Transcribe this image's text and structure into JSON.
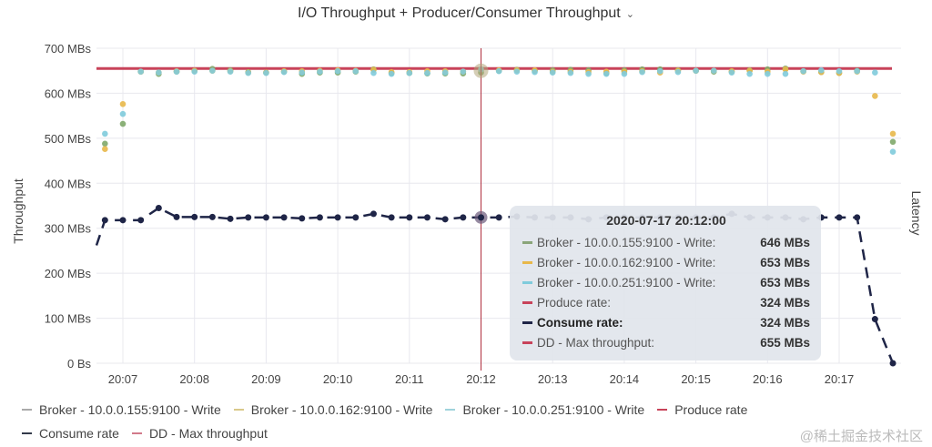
{
  "chart_data": {
    "type": "line",
    "title": "I/O Throughput + Producer/Consumer Throughput",
    "ylabel": "Throughput",
    "ylabel_right": "Latency",
    "ylim": [
      0,
      700
    ],
    "yticks": [
      "0 Bs",
      "100 MBs",
      "200 MBs",
      "300 MBs",
      "400 MBs",
      "500 MBs",
      "600 MBs",
      "700 MBs"
    ],
    "ytick_values": [
      0,
      100,
      200,
      300,
      400,
      500,
      600,
      700
    ],
    "xticks": [
      "20:07",
      "20:08",
      "20:09",
      "20:10",
      "20:11",
      "20:12",
      "20:13",
      "20:14",
      "20:15",
      "20:16",
      "20:17"
    ],
    "x_start": "20:06:45",
    "interval_seconds": 15,
    "grid": true,
    "legend_placement": "bottom",
    "series": [
      {
        "name": "Broker - 10.0.0.155:9100 - Write",
        "color": "#7fa86a",
        "style": "points",
        "values": [
          488,
          532,
          648,
          643,
          648,
          650,
          654,
          651,
          647,
          646,
          648,
          643,
          646,
          646,
          648,
          653,
          645,
          645,
          644,
          644,
          644,
          646,
          650,
          652,
          650,
          651,
          652,
          651,
          645,
          651,
          653,
          653,
          651,
          650,
          648,
          648,
          651,
          653,
          655,
          649,
          647,
          645,
          650,
          null,
          492
        ]
      },
      {
        "name": "Broker - 10.0.0.162:9100 - Write",
        "color": "#e8b84a",
        "style": "points",
        "values": [
          476,
          576,
          648,
          646,
          649,
          650,
          650,
          649,
          646,
          646,
          649,
          649,
          650,
          651,
          650,
          652,
          647,
          647,
          649,
          649,
          648,
          653,
          651,
          651,
          651,
          648,
          648,
          647,
          648,
          648,
          649,
          646,
          650,
          650,
          650,
          649,
          650,
          648,
          653,
          648,
          647,
          645,
          648,
          594,
          510
        ]
      },
      {
        "name": "Broker - 10.0.0.251:9100 - Write",
        "color": "#7fcbdc",
        "style": "points",
        "values": [
          510,
          554,
          648,
          646,
          648,
          648,
          650,
          648,
          645,
          645,
          647,
          646,
          648,
          649,
          649,
          645,
          643,
          645,
          645,
          646,
          648,
          653,
          649,
          648,
          647,
          646,
          645,
          643,
          643,
          643,
          647,
          649,
          647,
          650,
          650,
          646,
          643,
          643,
          643,
          649,
          651,
          649,
          649,
          646,
          470
        ]
      },
      {
        "name": "Produce rate",
        "color": "#c8435a",
        "style": "hidden",
        "values": []
      },
      {
        "name": "Consume rate",
        "color": "#1f2547",
        "style": "dashed-line-points",
        "values": [
          318,
          318,
          318,
          345,
          325,
          325,
          325,
          321,
          324,
          324,
          324,
          322,
          324,
          324,
          324,
          332,
          324,
          324,
          324,
          320,
          324,
          324,
          324,
          326,
          324,
          324,
          324,
          320,
          324,
          324,
          324,
          324,
          324,
          324,
          324,
          332,
          324,
          324,
          324,
          320,
          324,
          324,
          324,
          98,
          0
        ]
      },
      {
        "name": "DD - Max throughput",
        "color": "#c8435a",
        "style": "line",
        "constant": 655
      }
    ],
    "hover_time": "20:12",
    "tooltip": {
      "title": "2020-07-17 20:12:00",
      "rows": [
        {
          "label": "Broker - 10.0.0.155:9100 - Write:",
          "value": "646 MBs",
          "color": "#8aa57a"
        },
        {
          "label": "Broker - 10.0.0.162:9100 - Write:",
          "value": "653 MBs",
          "color": "#e8b84a"
        },
        {
          "label": "Broker - 10.0.0.251:9100 - Write:",
          "value": "653 MBs",
          "color": "#7fcbdc"
        },
        {
          "label": "Produce rate:",
          "value": "324 MBs",
          "color": "#c8435a"
        },
        {
          "label": "Consume rate:",
          "value": "324 MBs",
          "color": "#1f2547",
          "bold": true
        },
        {
          "label": "DD - Max throughput:",
          "value": "655 MBs",
          "color": "#c8435a"
        }
      ]
    },
    "legend": [
      {
        "label": "Broker - 10.0.0.155:9100 - Write",
        "color": "#aaaaaa"
      },
      {
        "label": "Broker - 10.0.0.162:9100 - Write",
        "color": "#d9c98a"
      },
      {
        "label": "Broker - 10.0.0.251:9100 - Write",
        "color": "#9fd3dc"
      },
      {
        "label": "Produce rate",
        "color": "#c8435a"
      },
      {
        "label": "Consume rate",
        "color": "#333a4a"
      },
      {
        "label": "DD - Max throughput",
        "color": "#d27a8a"
      }
    ]
  },
  "watermark": "@稀土掘金技术社区"
}
